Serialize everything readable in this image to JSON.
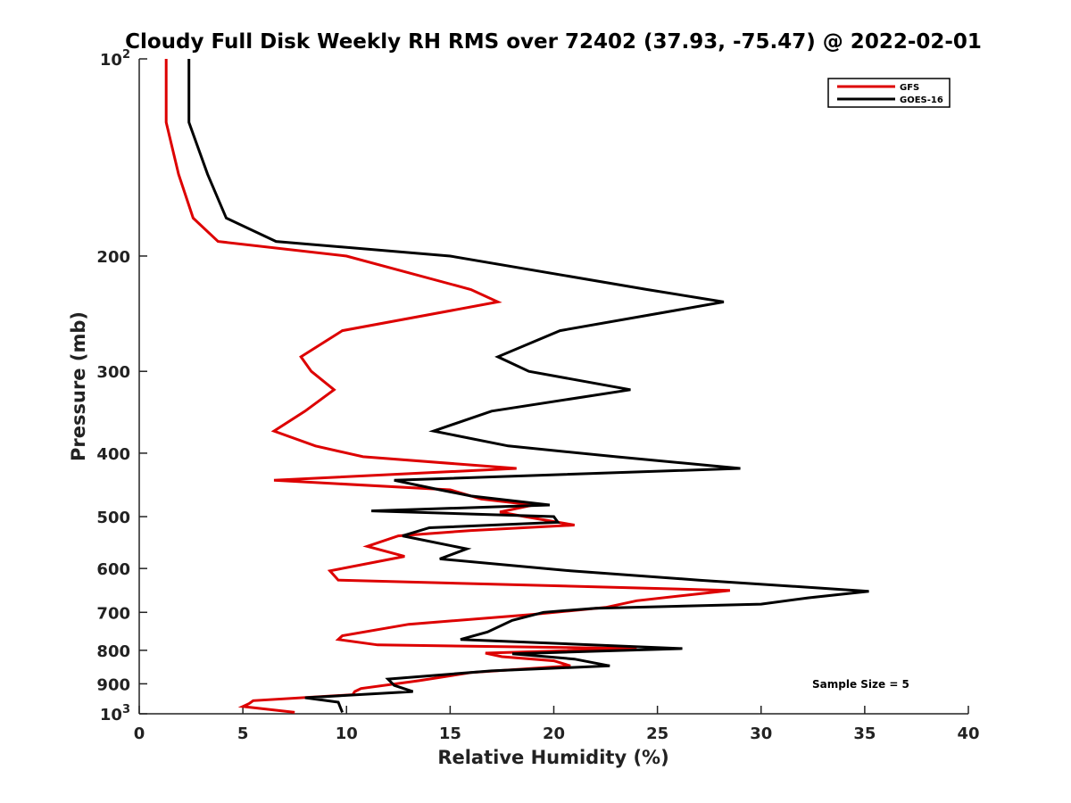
{
  "chart_data": {
    "type": "line",
    "title": "Cloudy Full Disk Weekly RH RMS over 72402 (37.93, -75.47) @ 2022-02-01",
    "xlabel": "Relative Humidity (%)",
    "ylabel": "Pressure (mb)",
    "xlim": [
      0,
      40
    ],
    "ylim": [
      100,
      1000
    ],
    "y_scale": "log",
    "y_reversed": true,
    "x_ticks": [
      "0",
      "5",
      "10",
      "15",
      "20",
      "25",
      "30",
      "35",
      "40"
    ],
    "y_ticks": [
      {
        "value": 100,
        "base": "10",
        "exp": "2"
      },
      {
        "value": 200,
        "label": "200"
      },
      {
        "value": 300,
        "label": "300"
      },
      {
        "value": 400,
        "label": "400"
      },
      {
        "value": 500,
        "label": "500"
      },
      {
        "value": 600,
        "label": "600"
      },
      {
        "value": 700,
        "label": "700"
      },
      {
        "value": 800,
        "label": "800"
      },
      {
        "value": 900,
        "label": "900"
      },
      {
        "value": 1000,
        "base": "10",
        "exp": "3"
      }
    ],
    "legend_position": "top-right",
    "grid": false,
    "annotation": "Sample Size = 5",
    "series": [
      {
        "name": "GFS",
        "color": "#dd0000",
        "points": [
          [
            1.3,
            100
          ],
          [
            1.3,
            125
          ],
          [
            1.9,
            150
          ],
          [
            2.6,
            175
          ],
          [
            3.8,
            190
          ],
          [
            10,
            200
          ],
          [
            16,
            225
          ],
          [
            17.3,
            235
          ],
          [
            9.8,
            260
          ],
          [
            7.8,
            285
          ],
          [
            8.3,
            300
          ],
          [
            9.4,
            320
          ],
          [
            8,
            345
          ],
          [
            6.5,
            370
          ],
          [
            8.5,
            390
          ],
          [
            10.8,
            405
          ],
          [
            18.2,
            422
          ],
          [
            6.5,
            440
          ],
          [
            15,
            455
          ],
          [
            16.5,
            470
          ],
          [
            19,
            480
          ],
          [
            17.4,
            492
          ],
          [
            18.6,
            500
          ],
          [
            21,
            515
          ],
          [
            16,
            525
          ],
          [
            12.5,
            535
          ],
          [
            11,
            555
          ],
          [
            12.8,
            575
          ],
          [
            9.2,
            605
          ],
          [
            9.6,
            625
          ],
          [
            28.5,
            648
          ],
          [
            24,
            672
          ],
          [
            22.5,
            688
          ],
          [
            19,
            705
          ],
          [
            13,
            730
          ],
          [
            9.8,
            760
          ],
          [
            9.6,
            770
          ],
          [
            11.5,
            785
          ],
          [
            24,
            795
          ],
          [
            16.7,
            808
          ],
          [
            17.5,
            818
          ],
          [
            20,
            830
          ],
          [
            20.8,
            845
          ],
          [
            16,
            865
          ],
          [
            13.5,
            890
          ],
          [
            10.7,
            915
          ],
          [
            10.4,
            925
          ],
          [
            10.3,
            935
          ],
          [
            5.5,
            955
          ],
          [
            5.3,
            965
          ],
          [
            5,
            975
          ],
          [
            7.5,
            995
          ]
        ]
      },
      {
        "name": "GOES-16",
        "color": "#000000",
        "points": [
          [
            2.4,
            100
          ],
          [
            2.4,
            125
          ],
          [
            3.3,
            150
          ],
          [
            4.2,
            175
          ],
          [
            6.6,
            190
          ],
          [
            15,
            200
          ],
          [
            24.5,
            225
          ],
          [
            28.2,
            235
          ],
          [
            20.3,
            260
          ],
          [
            17.3,
            285
          ],
          [
            18.8,
            300
          ],
          [
            23.7,
            320
          ],
          [
            17,
            345
          ],
          [
            14.2,
            370
          ],
          [
            17.8,
            390
          ],
          [
            23,
            405
          ],
          [
            29,
            422
          ],
          [
            12.3,
            440
          ],
          [
            14.5,
            455
          ],
          [
            16,
            465
          ],
          [
            19.8,
            480
          ],
          [
            11.2,
            490
          ],
          [
            20,
            500
          ],
          [
            20.2,
            510
          ],
          [
            14,
            520
          ],
          [
            12.7,
            535
          ],
          [
            15.8,
            560
          ],
          [
            14.5,
            580
          ],
          [
            20.8,
            605
          ],
          [
            27,
            625
          ],
          [
            35.2,
            650
          ],
          [
            32.3,
            665
          ],
          [
            30,
            680
          ],
          [
            22,
            690
          ],
          [
            19.5,
            700
          ],
          [
            18,
            720
          ],
          [
            16.8,
            750
          ],
          [
            15.5,
            770
          ],
          [
            26.2,
            795
          ],
          [
            18,
            810
          ],
          [
            21,
            825
          ],
          [
            22.7,
            845
          ],
          [
            17,
            860
          ],
          [
            12,
            885
          ],
          [
            12.3,
            905
          ],
          [
            13.2,
            925
          ],
          [
            8,
            945
          ],
          [
            9.6,
            960
          ],
          [
            9.8,
            995
          ]
        ]
      }
    ]
  }
}
